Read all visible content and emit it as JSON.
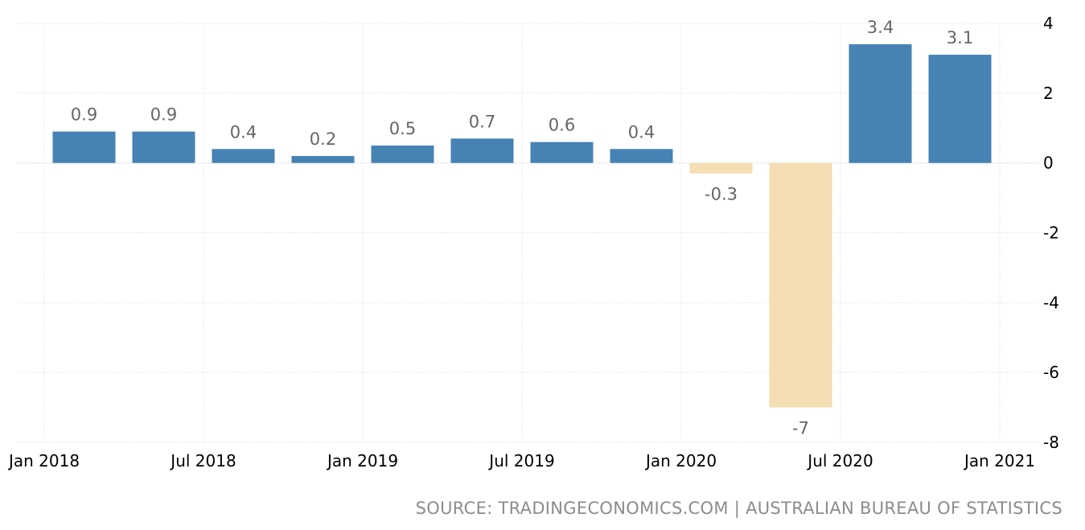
{
  "chart_data": {
    "type": "bar",
    "categories": [
      "Q1 2018",
      "Q2 2018",
      "Q3 2018",
      "Q4 2018",
      "Q1 2019",
      "Q2 2019",
      "Q3 2019",
      "Q4 2019",
      "Q1 2020",
      "Q2 2020",
      "Q3 2020",
      "Q4 2020"
    ],
    "values": [
      0.9,
      0.9,
      0.4,
      0.2,
      0.5,
      0.7,
      0.6,
      0.4,
      -0.3,
      -7,
      3.4,
      3.1
    ],
    "value_labels": [
      "0.9",
      "0.9",
      "0.4",
      "0.2",
      "0.5",
      "0.7",
      "0.6",
      "0.4",
      "-0.3",
      "-7",
      "3.4",
      "3.1"
    ],
    "title": "",
    "xlabel": "",
    "ylabel": "",
    "ylim": [
      -8,
      4
    ],
    "y_ticks": [
      4,
      2,
      0,
      -2,
      -4,
      -6,
      -8
    ],
    "x_ticks": [
      "Jan 2018",
      "Jul 2018",
      "Jan 2019",
      "Jul 2019",
      "Jan 2020",
      "Jul 2020",
      "Jan 2021"
    ],
    "y_axis_position": "right",
    "grid": true,
    "legend": "none",
    "colors": {
      "positive": "#4682b4",
      "negative": "#f5deb3",
      "grid": "#d9d9d9"
    }
  },
  "source_text": "SOURCE: TRADINGECONOMICS.COM | AUSTRALIAN BUREAU OF STATISTICS"
}
